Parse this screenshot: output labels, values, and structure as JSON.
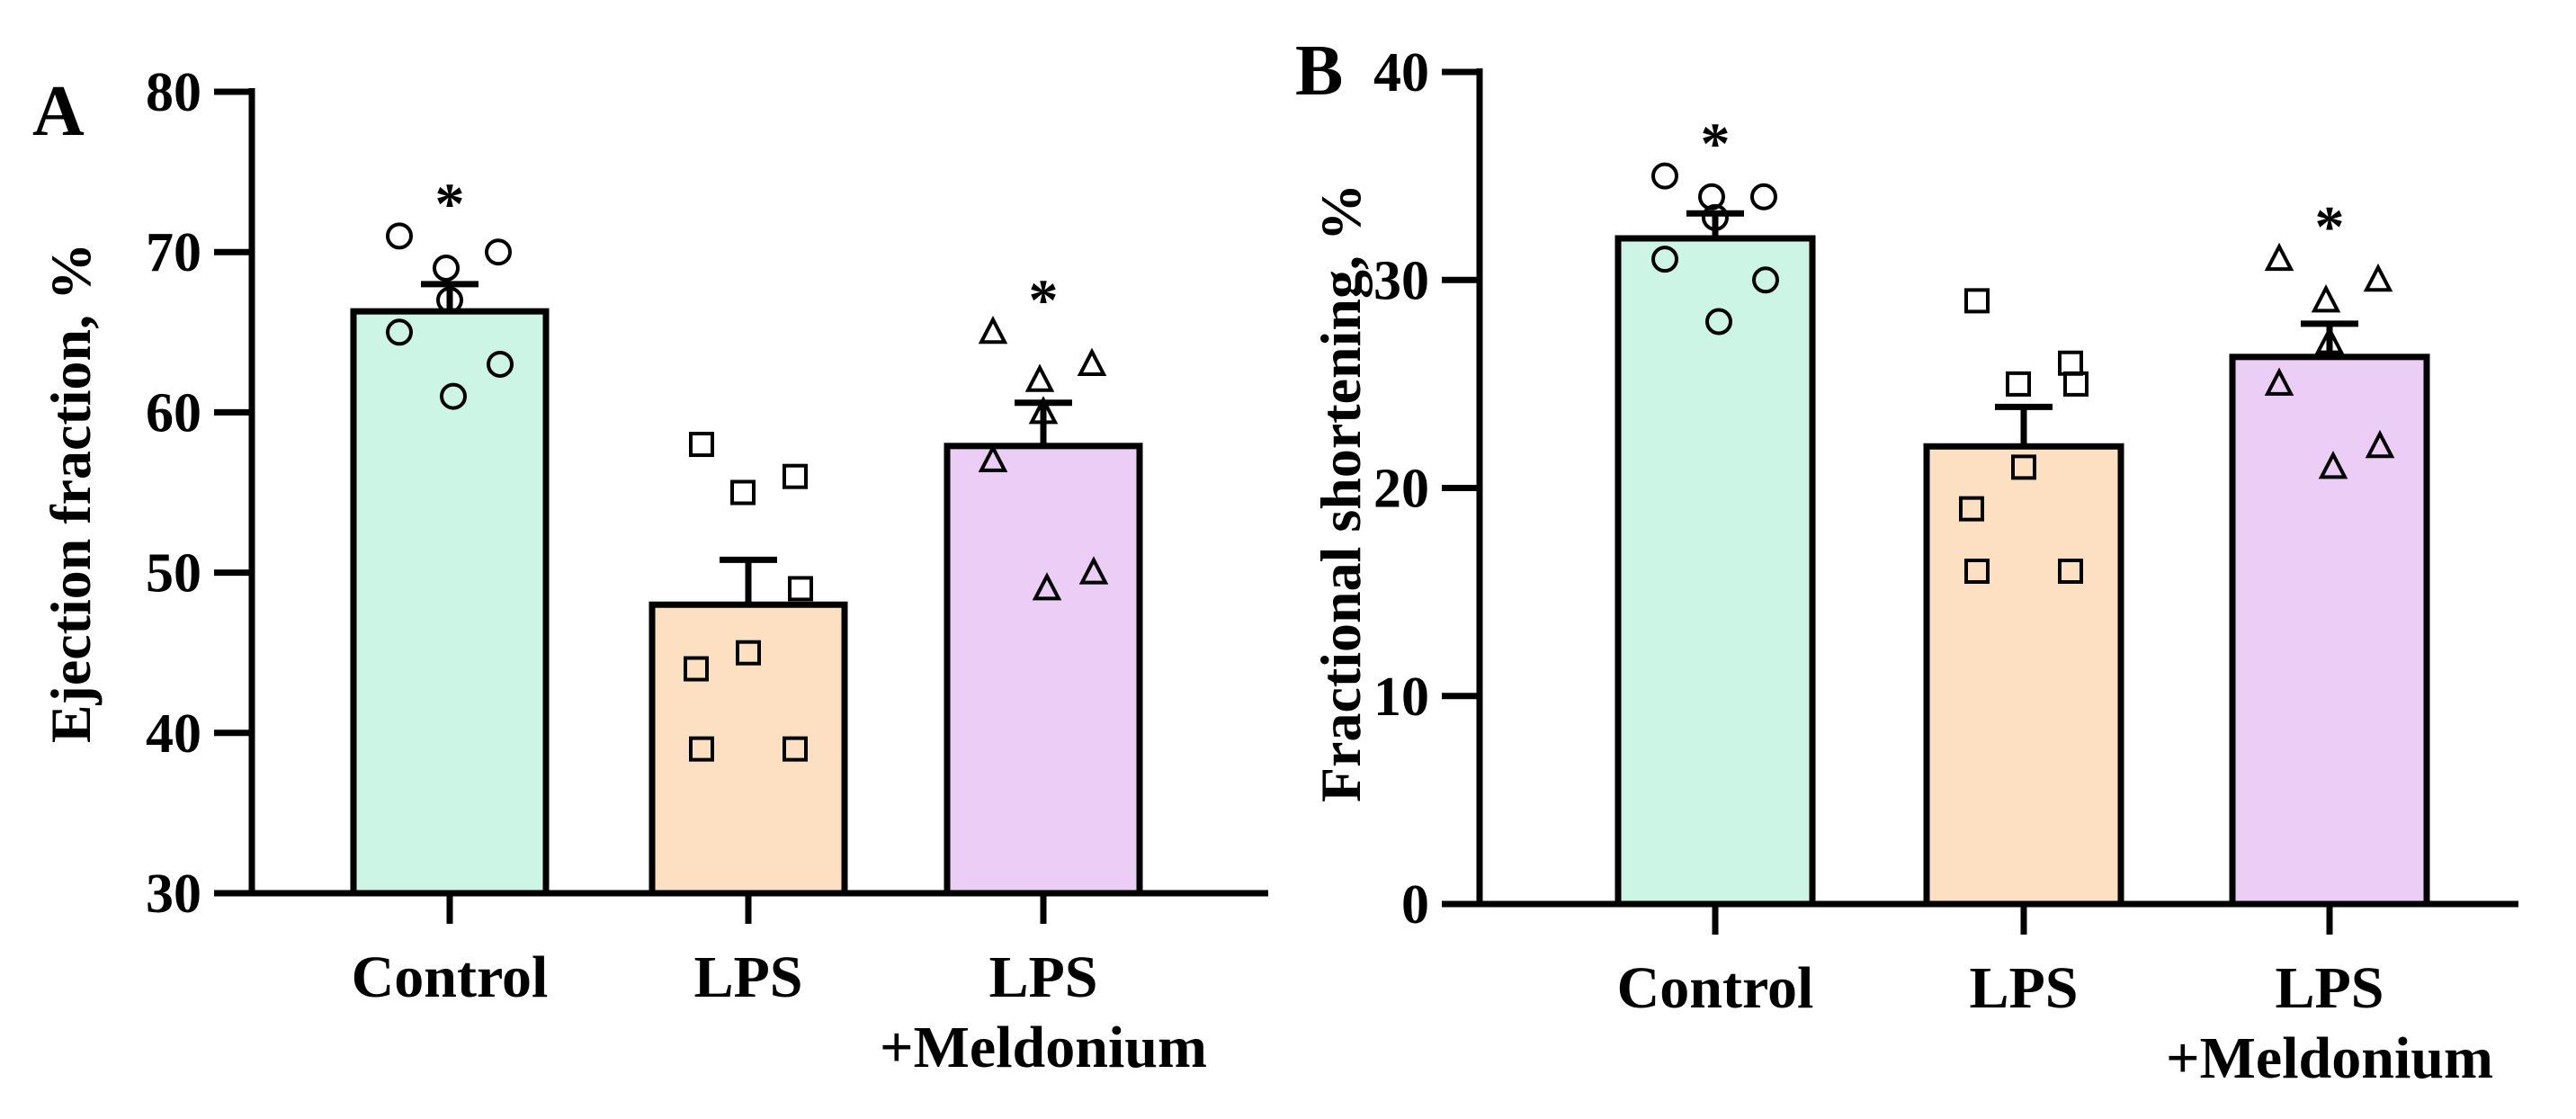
{
  "chart_data": [
    {
      "type": "bar",
      "panel_label": "A",
      "categories": [
        "Control",
        "LPS",
        "LPS\n+Meldonium"
      ],
      "values": [
        66.3,
        48.0,
        57.9
      ],
      "errors": [
        1.7,
        2.8,
        2.7
      ],
      "colors": [
        "#ccf5e6",
        "#fde0c2",
        "#ebcdf5"
      ],
      "markers": [
        "circle",
        "square",
        "triangle"
      ],
      "points": [
        [
          71,
          70,
          69,
          67,
          65,
          63,
          61
        ],
        [
          58,
          56,
          55,
          49,
          45,
          44,
          39,
          39
        ],
        [
          65,
          63,
          62,
          60,
          57,
          50,
          49
        ]
      ],
      "significance": [
        "*",
        "",
        "*"
      ],
      "ylabel": "Ejection fraction, %",
      "xlabel": "",
      "ylim": [
        30,
        80
      ],
      "yticks": [
        30,
        40,
        50,
        60,
        70,
        80
      ]
    },
    {
      "type": "bar",
      "panel_label": "B",
      "categories": [
        "Control",
        "LPS",
        "LPS\n+Meldonium"
      ],
      "values": [
        32.0,
        22.0,
        26.3
      ],
      "errors": [
        1.2,
        1.9,
        1.6
      ],
      "colors": [
        "#ccf5e6",
        "#fde0c2",
        "#ebcdf5"
      ],
      "markers": [
        "circle",
        "square",
        "triangle"
      ],
      "points": [
        [
          35,
          34,
          34,
          33,
          31,
          30,
          28
        ],
        [
          29,
          26,
          25,
          25,
          21,
          19,
          16,
          16
        ],
        [
          31,
          30,
          29,
          27,
          25,
          22,
          21
        ]
      ],
      "significance": [
        "*",
        "",
        "*"
      ],
      "ylabel": "Fractional shortening, %",
      "xlabel": "",
      "ylim": [
        0,
        40
      ],
      "yticks": [
        0,
        10,
        20,
        30,
        40
      ]
    }
  ]
}
